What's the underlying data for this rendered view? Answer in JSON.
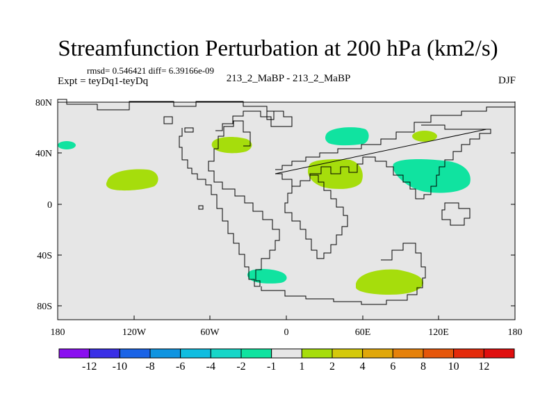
{
  "header": {
    "title": "Streamfunction Perturbation at 200 hPa (km2/s)",
    "stats": "rmsd= 0.546421 diff= 6.39166e-09",
    "expt": "Expt = teyDq1-teyDq",
    "center_label": "213_2_MaBP - 213_2_MaBP",
    "season": "DJF"
  },
  "axes": {
    "lat_ticks": [
      "80N",
      "40N",
      "0",
      "40S",
      "80S"
    ],
    "lon_ticks": [
      "180",
      "120W",
      "60W",
      "0",
      "60E",
      "120E",
      "180"
    ]
  },
  "colorbar": {
    "labels": [
      "-12",
      "-10",
      "-8",
      "-6",
      "-4",
      "-2",
      "-1",
      "1",
      "2",
      "4",
      "6",
      "8",
      "10",
      "12"
    ],
    "colors": [
      "#8a0ef0",
      "#3a2fe6",
      "#1a63e6",
      "#0f94e0",
      "#10bde0",
      "#17d6c8",
      "#10e3a0",
      "#e6e6e6",
      "#a6dd0c",
      "#d4c90a",
      "#e0a70a",
      "#e5810a",
      "#e5560a",
      "#e42a0a",
      "#e00e0e"
    ]
  },
  "chart_data": {
    "type": "filled-contour-map",
    "title": "Streamfunction Perturbation at 200 hPa (km2/s)",
    "units": "km2/s",
    "lon_range": [
      -180,
      180
    ],
    "lat_range": [
      -90,
      90
    ],
    "background_value_band": "-1 to 1",
    "anomalies": [
      {
        "name": "north-pacific-neg",
        "lon": -177,
        "lat": 47,
        "band": "-2 to -1"
      },
      {
        "name": "tropical-pacific-pos",
        "lon": -127,
        "lat": 20,
        "band": "1 to 2"
      },
      {
        "name": "north-atlantic-pos",
        "lon": -40,
        "lat": 48,
        "band": "1 to 2"
      },
      {
        "name": "south-atlantic-neg",
        "lon": -7,
        "lat": -55,
        "band": "-2 to -1"
      },
      {
        "name": "central-asia-neg",
        "lon": 62,
        "lat": 55,
        "band": "-2 to -1"
      },
      {
        "name": "middle-east-pos",
        "lon": 40,
        "lat": 25,
        "band": "1 to 2"
      },
      {
        "name": "southern-indian-ocean-pos",
        "lon": 67,
        "lat": -61,
        "band": "1 to 2"
      },
      {
        "name": "east-asia-neg",
        "lon": 118,
        "lat": 26,
        "band": "-2 to -1"
      },
      {
        "name": "northeast-asia-pos",
        "lon": 108,
        "lat": 54,
        "band": "1 to 2"
      }
    ]
  }
}
